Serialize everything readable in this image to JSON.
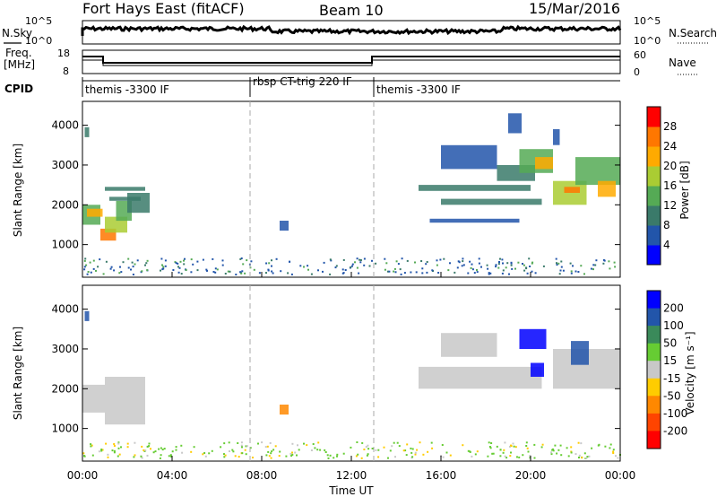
{
  "header": {
    "station": "Fort Hays East (fitACF)",
    "beam": "Beam 10",
    "date": "15/Mar/2016"
  },
  "top_panels": {
    "nsky_label": "N.Sky",
    "nsky_ticks": [
      "10^5",
      "10^0"
    ],
    "nsearch_label": "N.Search",
    "nsearch_ticks": [
      "10^5",
      "10^0"
    ],
    "freq_label": "Freq.",
    "freq_unit": "[MHz]",
    "freq_ticks": [
      "18",
      "8"
    ],
    "nave_label": "Nave",
    "nave_ticks": [
      "60",
      "0"
    ],
    "cpid_label": "CPID",
    "cpid_segments": [
      {
        "label": "themis -3300 IF",
        "start_hr": 0,
        "end_hr": 7.5
      },
      {
        "label": "rbsp CT-trig 220 IF",
        "start_hr": 7.5,
        "end_hr": 13
      },
      {
        "label": "themis -3300 IF",
        "start_hr": 13,
        "end_hr": 24
      }
    ]
  },
  "chart_data": [
    {
      "type": "heatmap",
      "name": "power",
      "ylabel": "Slant Range [km]",
      "ylim": [
        180,
        4600
      ],
      "xlim": [
        0,
        24
      ],
      "y_ticks": [
        "1000",
        "2000",
        "3000",
        "4000"
      ],
      "y_tick_values": [
        1000,
        2000,
        3000,
        4000
      ],
      "colorbar_label": "Power [dB]",
      "colorbar_ticks": [
        "4",
        "8",
        "12",
        "16",
        "20",
        "24",
        "28"
      ],
      "colorbar_colors": [
        "#0000ff",
        "#2255aa",
        "#3a7a6a",
        "#55aa55",
        "#aacc33",
        "#ffaa00",
        "#ff7700",
        "#ff0000"
      ],
      "cells": [
        {
          "t0": 0.0,
          "t1": 0.8,
          "r0": 1500,
          "r1": 2000,
          "v": 14
        },
        {
          "t0": 0.2,
          "t1": 0.9,
          "r0": 1700,
          "r1": 1900,
          "v": 20
        },
        {
          "t0": 0.8,
          "t1": 1.5,
          "r0": 1100,
          "r1": 1400,
          "v": 26
        },
        {
          "t0": 1.0,
          "t1": 2.0,
          "r0": 1300,
          "r1": 1700,
          "v": 18
        },
        {
          "t0": 1.5,
          "t1": 2.2,
          "r0": 1600,
          "r1": 2100,
          "v": 12
        },
        {
          "t0": 2.0,
          "t1": 3.0,
          "r0": 1800,
          "r1": 2300,
          "v": 10
        },
        {
          "t0": 0.1,
          "t1": 0.3,
          "r0": 3700,
          "r1": 3950,
          "v": 8
        },
        {
          "t0": 1.0,
          "t1": 2.8,
          "r0": 2350,
          "r1": 2450,
          "v": 8
        },
        {
          "t0": 1.2,
          "t1": 2.6,
          "r0": 2100,
          "r1": 2200,
          "v": 9
        },
        {
          "t0": 8.8,
          "t1": 9.2,
          "r0": 1350,
          "r1": 1600,
          "v": 6
        },
        {
          "t0": 15.0,
          "t1": 20.0,
          "r0": 2350,
          "r1": 2500,
          "v": 10
        },
        {
          "t0": 16.0,
          "t1": 20.5,
          "r0": 2000,
          "r1": 2150,
          "v": 8
        },
        {
          "t0": 15.5,
          "t1": 19.5,
          "r0": 1550,
          "r1": 1650,
          "v": 7
        },
        {
          "t0": 18.5,
          "t1": 20.2,
          "r0": 2600,
          "r1": 3000,
          "v": 9
        },
        {
          "t0": 19.5,
          "t1": 21.0,
          "r0": 2800,
          "r1": 3400,
          "v": 14
        },
        {
          "t0": 20.2,
          "t1": 21.0,
          "r0": 2900,
          "r1": 3200,
          "v": 22
        },
        {
          "t0": 21.0,
          "t1": 22.5,
          "r0": 2000,
          "r1": 2600,
          "v": 16
        },
        {
          "t0": 21.5,
          "t1": 22.2,
          "r0": 2300,
          "r1": 2450,
          "v": 24
        },
        {
          "t0": 22.0,
          "t1": 24.0,
          "r0": 2500,
          "r1": 3200,
          "v": 12
        },
        {
          "t0": 23.0,
          "t1": 23.8,
          "r0": 2200,
          "r1": 2600,
          "v": 20
        },
        {
          "t0": 16.0,
          "t1": 18.5,
          "r0": 2900,
          "r1": 3500,
          "v": 7
        },
        {
          "t0": 19.0,
          "t1": 19.6,
          "r0": 3800,
          "r1": 4300,
          "v": 6
        },
        {
          "t0": 21.0,
          "t1": 21.3,
          "r0": 3500,
          "r1": 3900,
          "v": 6
        }
      ]
    },
    {
      "type": "heatmap",
      "name": "velocity",
      "ylabel": "Slant Range [km]",
      "ylim": [
        180,
        4600
      ],
      "xlim": [
        0,
        24
      ],
      "y_ticks": [
        "1000",
        "2000",
        "3000",
        "4000"
      ],
      "y_tick_values": [
        1000,
        2000,
        3000,
        4000
      ],
      "colorbar_label": "Velocity [m s⁻¹]",
      "colorbar_ticks": [
        "200",
        "100",
        "50",
        "15",
        "-15",
        "-50",
        "-100",
        "-200"
      ],
      "colorbar_colors": [
        "#0000ff",
        "#2255aa",
        "#3a8a5a",
        "#66cc33",
        "#c8c8c8",
        "#ffcc00",
        "#ff8800",
        "#ff4400",
        "#ff0000"
      ],
      "cells": [
        {
          "t0": 0.0,
          "t1": 1.0,
          "r0": 1400,
          "r1": 2100,
          "v": 0
        },
        {
          "t0": 1.0,
          "t1": 2.8,
          "r0": 1100,
          "r1": 2300,
          "v": 0
        },
        {
          "t0": 0.1,
          "t1": 0.3,
          "r0": 3700,
          "r1": 3950,
          "v": 150
        },
        {
          "t0": 8.8,
          "t1": 9.2,
          "r0": 1350,
          "r1": 1600,
          "v": -80
        },
        {
          "t0": 15.0,
          "t1": 20.5,
          "r0": 2000,
          "r1": 2550,
          "v": 0
        },
        {
          "t0": 19.5,
          "t1": 20.7,
          "r0": 3000,
          "r1": 3500,
          "v": 250
        },
        {
          "t0": 20.0,
          "t1": 20.6,
          "r0": 2300,
          "r1": 2650,
          "v": 250
        },
        {
          "t0": 21.0,
          "t1": 24.0,
          "r0": 2000,
          "r1": 3000,
          "v": 0
        },
        {
          "t0": 21.8,
          "t1": 22.6,
          "r0": 2600,
          "r1": 3200,
          "v": 120
        },
        {
          "t0": 16.0,
          "t1": 18.5,
          "r0": 2800,
          "r1": 3400,
          "v": 0
        }
      ]
    }
  ],
  "x_axis": {
    "label": "Time UT",
    "ticks": [
      "00:00",
      "04:00",
      "08:00",
      "12:00",
      "16:00",
      "20:00",
      "00:00"
    ],
    "tick_values": [
      0,
      4,
      8,
      12,
      16,
      20,
      24
    ]
  }
}
